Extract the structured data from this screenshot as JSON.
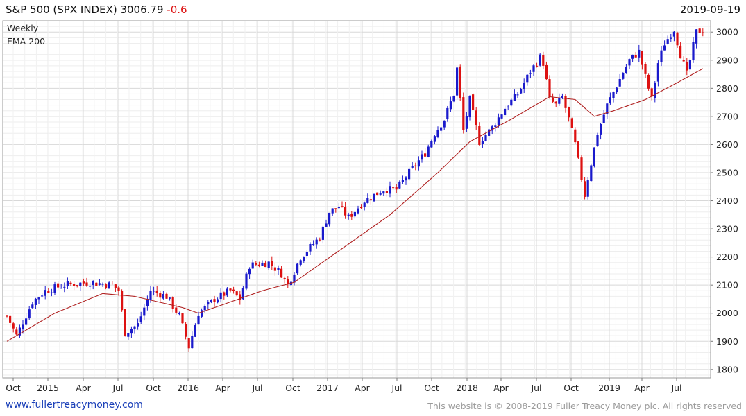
{
  "header": {
    "title": "S&P 500 (SPX INDEX) 3006.79",
    "change": "-0.6",
    "date": "2019-09-19"
  },
  "footer": {
    "link": "www.fullertreacymoney.com",
    "copyright": "This website is © 2008-2019 Fuller Treacy Money plc. All rights reserved"
  },
  "colors": {
    "up": "#1a1acc",
    "down": "#dd1111",
    "ema": "#b02020",
    "grid": "#d8d8d8"
  },
  "chart_data": {
    "type": "candlestick",
    "timeframe": "Weekly",
    "legend": [
      "Weekly",
      "EMA 200"
    ],
    "legend_position": "top-left",
    "y_axis_position": "right",
    "grid": true,
    "ylim": [
      1770,
      3040
    ],
    "yticks": [
      1800,
      1900,
      2000,
      2100,
      2200,
      2300,
      2400,
      2500,
      2600,
      2700,
      2800,
      2900,
      3000
    ],
    "xticks": [
      "Oct",
      "2015",
      "Apr",
      "Jul",
      "Oct",
      "2016",
      "Apr",
      "Jul",
      "Oct",
      "2017",
      "Apr",
      "Jul",
      "Oct",
      "2018",
      "Apr",
      "Jul",
      "Oct",
      "2019",
      "Apr",
      "Jul"
    ],
    "weekly_close_anchors": [
      {
        "week": 0,
        "close": 1990
      },
      {
        "week": 3,
        "close": 1920
      },
      {
        "week": 8,
        "close": 2040
      },
      {
        "week": 12,
        "close": 2080
      },
      {
        "week": 18,
        "close": 2100
      },
      {
        "week": 26,
        "close": 2110
      },
      {
        "week": 33,
        "close": 2100
      },
      {
        "week": 35,
        "close": 2080
      },
      {
        "week": 37,
        "close": 1930
      },
      {
        "week": 41,
        "close": 1960
      },
      {
        "week": 45,
        "close": 2080
      },
      {
        "week": 50,
        "close": 2060
      },
      {
        "week": 54,
        "close": 1990
      },
      {
        "week": 57,
        "close": 1880
      },
      {
        "week": 60,
        "close": 2000
      },
      {
        "week": 65,
        "close": 2050
      },
      {
        "week": 70,
        "close": 2080
      },
      {
        "week": 73,
        "close": 2050
      },
      {
        "week": 76,
        "close": 2170
      },
      {
        "week": 82,
        "close": 2180
      },
      {
        "week": 86,
        "close": 2140
      },
      {
        "week": 88,
        "close": 2100
      },
      {
        "week": 92,
        "close": 2200
      },
      {
        "week": 98,
        "close": 2270
      },
      {
        "week": 101,
        "close": 2360
      },
      {
        "week": 104,
        "close": 2380
      },
      {
        "week": 107,
        "close": 2340
      },
      {
        "week": 112,
        "close": 2400
      },
      {
        "week": 118,
        "close": 2440
      },
      {
        "week": 122,
        "close": 2440
      },
      {
        "week": 126,
        "close": 2500
      },
      {
        "week": 131,
        "close": 2570
      },
      {
        "week": 134,
        "close": 2640
      },
      {
        "week": 137,
        "close": 2690
      },
      {
        "week": 140,
        "close": 2780
      },
      {
        "week": 141,
        "close": 2870
      },
      {
        "week": 143,
        "close": 2650
      },
      {
        "week": 145,
        "close": 2760
      },
      {
        "week": 148,
        "close": 2610
      },
      {
        "week": 152,
        "close": 2660
      },
      {
        "week": 156,
        "close": 2730
      },
      {
        "week": 160,
        "close": 2780
      },
      {
        "week": 164,
        "close": 2860
      },
      {
        "week": 167,
        "close": 2910
      },
      {
        "week": 168,
        "close": 2890
      },
      {
        "week": 170,
        "close": 2760
      },
      {
        "week": 172,
        "close": 2740
      },
      {
        "week": 174,
        "close": 2770
      },
      {
        "week": 176,
        "close": 2690
      },
      {
        "week": 178,
        "close": 2600
      },
      {
        "week": 181,
        "close": 2420
      },
      {
        "week": 182,
        "close": 2480
      },
      {
        "week": 185,
        "close": 2640
      },
      {
        "week": 188,
        "close": 2740
      },
      {
        "week": 191,
        "close": 2810
      },
      {
        "week": 195,
        "close": 2900
      },
      {
        "week": 198,
        "close": 2930
      },
      {
        "week": 200,
        "close": 2840
      },
      {
        "week": 202,
        "close": 2760
      },
      {
        "week": 204,
        "close": 2890
      },
      {
        "week": 206,
        "close": 2960
      },
      {
        "week": 209,
        "close": 3010
      },
      {
        "week": 211,
        "close": 2920
      },
      {
        "week": 213,
        "close": 2850
      },
      {
        "week": 216,
        "close": 3000
      },
      {
        "week": 218,
        "close": 3007
      }
    ],
    "ema200_anchors": [
      {
        "week": 0,
        "value": 1900
      },
      {
        "week": 15,
        "value": 2000
      },
      {
        "week": 30,
        "value": 2070
      },
      {
        "week": 40,
        "value": 2060
      },
      {
        "week": 55,
        "value": 2020
      },
      {
        "week": 60,
        "value": 2000
      },
      {
        "week": 70,
        "value": 2040
      },
      {
        "week": 80,
        "value": 2080
      },
      {
        "week": 90,
        "value": 2110
      },
      {
        "week": 105,
        "value": 2230
      },
      {
        "week": 120,
        "value": 2350
      },
      {
        "week": 135,
        "value": 2500
      },
      {
        "week": 145,
        "value": 2610
      },
      {
        "week": 158,
        "value": 2690
      },
      {
        "week": 170,
        "value": 2770
      },
      {
        "week": 178,
        "value": 2760
      },
      {
        "week": 184,
        "value": 2700
      },
      {
        "week": 190,
        "value": 2720
      },
      {
        "week": 200,
        "value": 2760
      },
      {
        "week": 210,
        "value": 2820
      },
      {
        "week": 218,
        "value": 2870
      }
    ]
  }
}
